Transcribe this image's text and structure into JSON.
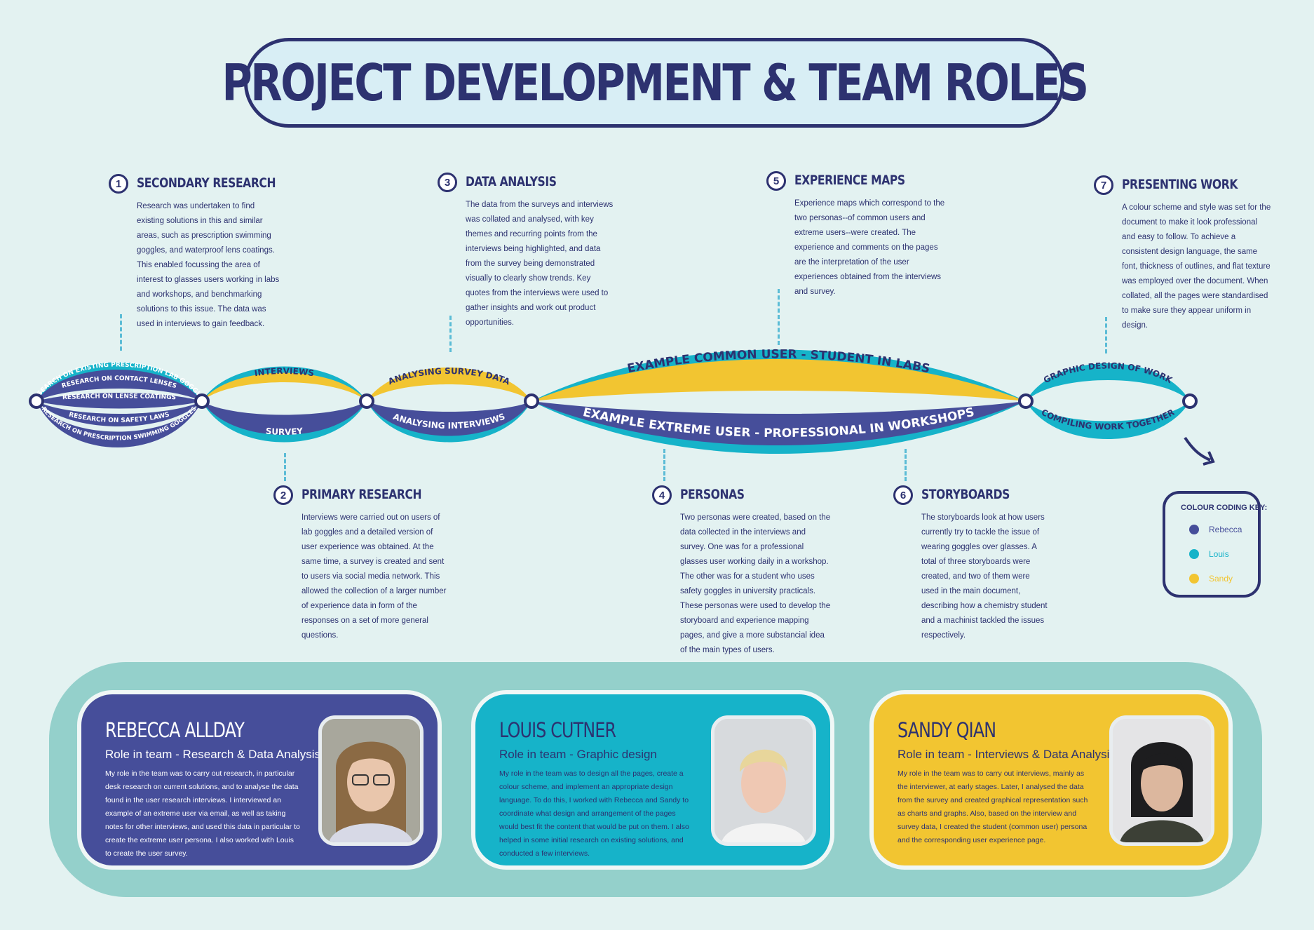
{
  "title": "PROJECT DEVELOPMENT & TEAM ROLES",
  "colors": {
    "rebecca": "#464e9a",
    "louis": "#16b3c9",
    "sandy": "#f2c531",
    "navy": "#2d3270"
  },
  "steps": [
    {
      "num": "1",
      "heading": "SECONDARY RESEARCH",
      "body": "Research was undertaken to find existing solutions in this and similar areas, such as prescription swimming goggles, and waterproof lens coatings. This enabled focussing the area of interest to glasses users working in labs and workshops, and benchmarking solutions to this issue. The data was used in interviews to gain feedback."
    },
    {
      "num": "2",
      "heading": "PRIMARY RESEARCH",
      "body": "Interviews were carried out on users of lab goggles and a detailed version of user experience was obtained. At the same time, a survey is created and sent to users via social media network. This allowed the collection of a larger number of experience data in form of the responses on a set of more general questions."
    },
    {
      "num": "3",
      "heading": "DATA ANALYSIS",
      "body": "The data from the surveys and interviews was collated and analysed, with key themes and recurring points from the interviews being highlighted, and data from the survey being demonstrated visually to clearly show trends. Key quotes from the interviews were used to gather insights and work out product opportunities."
    },
    {
      "num": "4",
      "heading": "PERSONAS",
      "body": "Two personas were created, based on the data collected in the interviews and survey. One was for a professional glasses user working daily in a workshop. The other was for a student who uses safety goggles in university practicals. These personas were used to develop the storyboard and experience mapping pages, and give a more substancial idea of the main types of users."
    },
    {
      "num": "5",
      "heading": "EXPERIENCE MAPS",
      "body": "Experience maps which correspond to the two personas--of common users and extreme users--were created. The experience and comments on the pages are the interpretation of the user experiences obtained from the interviews and survey."
    },
    {
      "num": "6",
      "heading": "STORYBOARDS",
      "body": "The storyboards look at how users currently try to tackle the issue of wearing goggles over glasses. A total of three storyboards were created, and two of them were used in the main document, describing how a chemistry student and a machinist tackled the issues respectively."
    },
    {
      "num": "7",
      "heading": "PRESENTING WORK",
      "body": "A colour scheme and style was set for the document to make it look professional and easy to follow. To achieve a consistent design language, the same font, thickness of outlines, and flat texture was employed over the document. When collated, all the pages were standardised to make sure they appear uniform in design."
    }
  ],
  "flow": {
    "research_lanes": [
      "RESEARCH ON EXISTING PRESCRIPTION LAB GOGGLES",
      "RESEARCH ON CONTACT LENSES",
      "RESEARCH ON LENSE COATINGS",
      "RESEARCH ON SAFETY LAWS",
      "RESEARCH ON PRESCRIPTION SWIMMING GOGGLES"
    ],
    "interviews": "INTERVIEWS",
    "survey": "SURVEY",
    "analysing_survey": "ANALYSING SURVEY DATA",
    "analysing_interviews": "ANALYSING INTERVIEWS",
    "common_user": "EXAMPLE COMMON USER - STUDENT IN LABS",
    "extreme_user": "EXAMPLE EXTREME USER - PROFESSIONAL IN WORKSHOPS",
    "graphic_design": "GRAPHIC DESIGN OF WORK",
    "compiling": "COMPILING WORK TOGETHER"
  },
  "key": {
    "title": "COLOUR CODING KEY:",
    "items": [
      {
        "name": "Rebecca",
        "color": "#464e9a"
      },
      {
        "name": "Louis",
        "color": "#16b3c9"
      },
      {
        "name": "Sandy",
        "color": "#f2c531"
      }
    ]
  },
  "team": [
    {
      "name": "REBECCA ALLDAY",
      "role": "Role in team - Research & Data Analysis",
      "desc": "My role in the team was to carry out research, in particular desk research on current solutions, and to analyse the data found in the user research interviews. I interviewed an example of an extreme user via email, as well as taking notes for other interviews, and used this data in particular to create the extreme user persona. I also worked with Louis to create the user survey."
    },
    {
      "name": "LOUIS CUTNER",
      "role": "Role in team - Graphic design",
      "desc": "My role in the team was to design all the pages, create a colour scheme, and implement an appropriate design language. To do this, I worked with Rebecca and Sandy to coordinate what design and arrangement of the pages would best fit the content that would be put on them. I also helped in some initial research on existing solutions, and conducted a few interviews."
    },
    {
      "name": "SANDY QIAN",
      "role": "Role in team - Interviews & Data Analysis",
      "desc": "My role in the team was to carry out interviews, mainly as the interviewer, at early stages. Later, I analysed the data from the survey and created graphical representation such as charts and graphs. Also, based on the interview and survey data, I created the student (common user) persona and the corresponding user experience page."
    }
  ]
}
